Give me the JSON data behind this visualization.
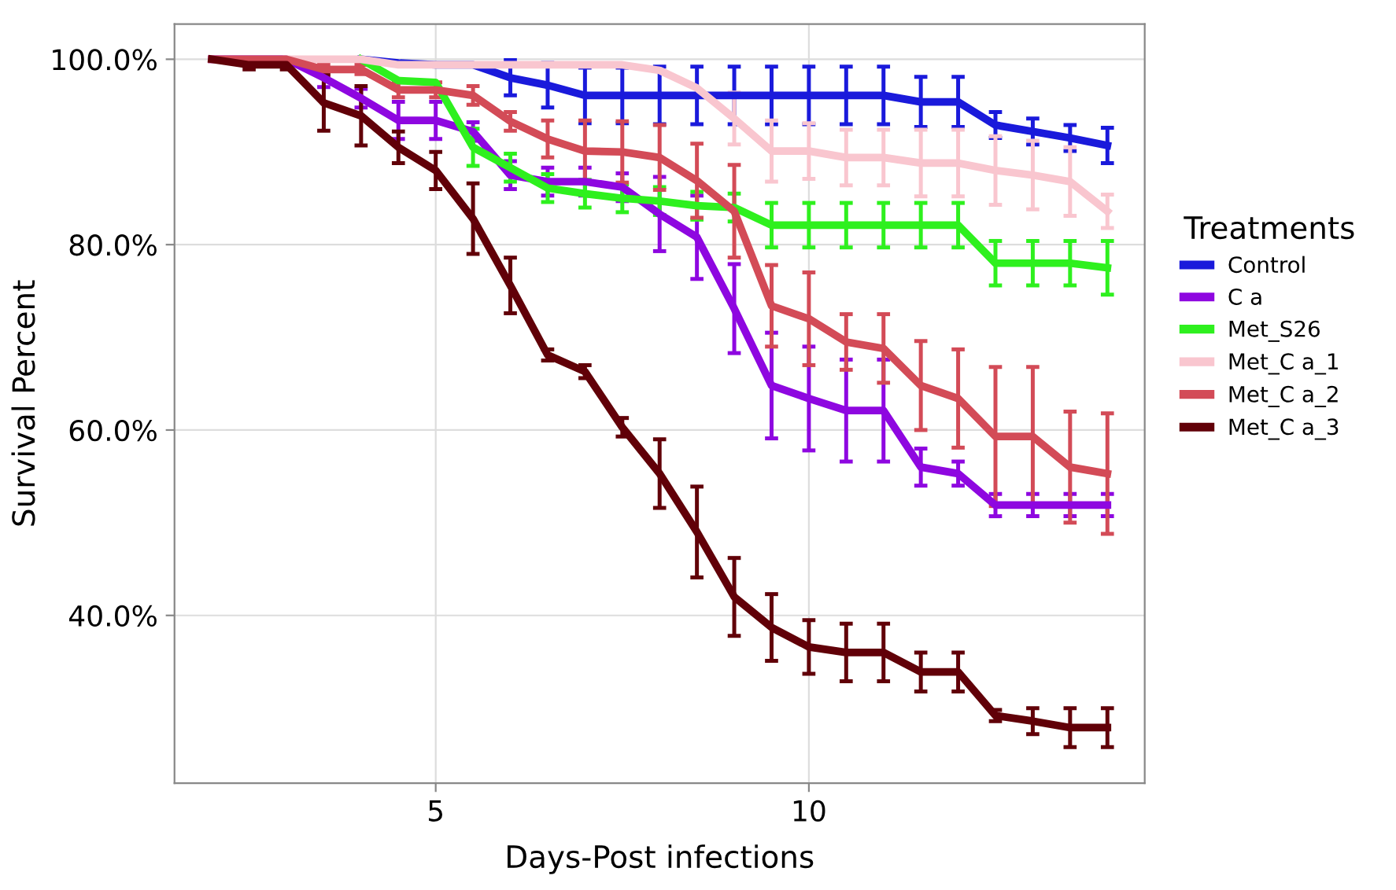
{
  "chart_data": {
    "type": "line",
    "xlabel": "Days-Post infections",
    "ylabel": "Survival Percent",
    "legend_title": "Treatments",
    "x": [
      2,
      2.5,
      3,
      3.5,
      4,
      4.5,
      5,
      5.5,
      6,
      6.5,
      7,
      7.5,
      8,
      8.5,
      9,
      9.5,
      10,
      10.5,
      11,
      11.5,
      12,
      12.5,
      13,
      13.5,
      14
    ],
    "xlim": [
      1.5,
      14.5
    ],
    "xticks": [
      5,
      10
    ],
    "ylim": [
      21.9,
      103.8
    ],
    "yticks": [
      {
        "value": 40,
        "label": "40.0%"
      },
      {
        "value": 60,
        "label": "60.0%"
      },
      {
        "value": 80,
        "label": "80.0%"
      },
      {
        "value": 100,
        "label": "100.0%"
      }
    ],
    "grid": true,
    "legend": "right",
    "marker": "none",
    "line_style": "solid",
    "series": [
      {
        "name": "Control",
        "color": "#1a1adb",
        "values": [
          null,
          null,
          null,
          null,
          100,
          99.6,
          99.4,
          99.4,
          98,
          97.2,
          96.1,
          96.1,
          96.1,
          96.1,
          96.1,
          96.1,
          96.1,
          96.1,
          96.1,
          95.4,
          95.4,
          92.9,
          92.2,
          91.5,
          90.7
        ],
        "errors": [
          null,
          null,
          null,
          null,
          null,
          null,
          null,
          null,
          1.9,
          2.4,
          3,
          3,
          3.1,
          3.1,
          3.1,
          3.1,
          3.1,
          3.1,
          3.1,
          2.7,
          2.7,
          1.4,
          1.4,
          1.4,
          1.9
        ]
      },
      {
        "name": "C a",
        "color": "#8e07e0",
        "values": [
          100,
          100,
          100,
          98,
          95.8,
          93.4,
          93.4,
          92.2,
          87.5,
          86.8,
          86.8,
          86.2,
          83.3,
          80.8,
          73.1,
          64.8,
          63.4,
          62.1,
          62.1,
          56,
          55.3,
          51.9,
          51.9,
          51.9,
          51.9
        ],
        "errors": [
          null,
          null,
          null,
          1,
          1,
          2,
          2,
          1,
          1.5,
          1.5,
          1.5,
          1.5,
          4,
          4.5,
          4.8,
          5.7,
          5.6,
          5.5,
          5.5,
          2,
          1.3,
          1.2,
          1.2,
          1.2,
          1.2
        ]
      },
      {
        "name": "Met_S26",
        "color": "#2ef01e",
        "values": [
          null,
          null,
          null,
          null,
          100,
          97.7,
          97.5,
          90.5,
          88.3,
          86.1,
          85.5,
          85,
          84.7,
          84.2,
          84,
          82.1,
          82.1,
          82.1,
          82.1,
          82.1,
          82.1,
          78,
          78,
          78,
          77.5
        ],
        "errors": [
          null,
          null,
          null,
          null,
          null,
          null,
          null,
          2,
          1.5,
          1.5,
          1.5,
          1.5,
          1.5,
          1.5,
          1.5,
          2.4,
          2.4,
          2.4,
          2.4,
          2.4,
          2.4,
          2.4,
          2.4,
          2.4,
          2.9
        ]
      },
      {
        "name": "Met_C a_1",
        "color": "#f9c6cf",
        "values": [
          null,
          null,
          100,
          100,
          100,
          99.4,
          99.4,
          99.4,
          99.4,
          99.4,
          99.4,
          99.4,
          98.8,
          96.9,
          93.6,
          90.1,
          90.1,
          89.4,
          89.4,
          88.8,
          88.8,
          88,
          87.5,
          86.8,
          83.6
        ],
        "errors": [
          null,
          null,
          null,
          null,
          null,
          null,
          null,
          null,
          null,
          null,
          null,
          null,
          null,
          null,
          2.8,
          3.3,
          3,
          3,
          3,
          3.6,
          3.6,
          3.7,
          3.7,
          3.7,
          1.8
        ]
      },
      {
        "name": "Met_C a_2",
        "color": "#d34b57",
        "values": [
          100,
          100,
          100,
          98.9,
          98.9,
          96.7,
          96.7,
          96.1,
          93.3,
          91.4,
          90.1,
          90,
          89.4,
          86.9,
          83.6,
          73.4,
          72,
          69.5,
          68.8,
          64.8,
          63.4,
          59.3,
          59.3,
          56,
          55.3
        ],
        "errors": [
          null,
          null,
          null,
          0.5,
          0.5,
          0.8,
          0.8,
          1,
          1,
          2,
          3.3,
          3.3,
          3.5,
          4,
          5,
          4.4,
          5,
          3,
          3.7,
          4.8,
          5.3,
          7.5,
          7.5,
          6,
          6.5
        ]
      },
      {
        "name": "Met_C a_3",
        "color": "#610008",
        "values": [
          100,
          99.4,
          99.4,
          95.3,
          93.9,
          90.5,
          88,
          82.8,
          75.6,
          68.1,
          66.3,
          60.3,
          55.3,
          49,
          42,
          38.7,
          36.6,
          36,
          36,
          33.9,
          33.9,
          29.2,
          28.6,
          27.9,
          27.9
        ],
        "errors": [
          null,
          0.5,
          0.5,
          3,
          3.2,
          1.7,
          2,
          3.8,
          3,
          0.6,
          0.7,
          1,
          3.7,
          4.9,
          4.2,
          3.6,
          2.9,
          3.1,
          3.1,
          2.1,
          2.1,
          0.6,
          1.4,
          2.1,
          2.1
        ]
      }
    ]
  }
}
